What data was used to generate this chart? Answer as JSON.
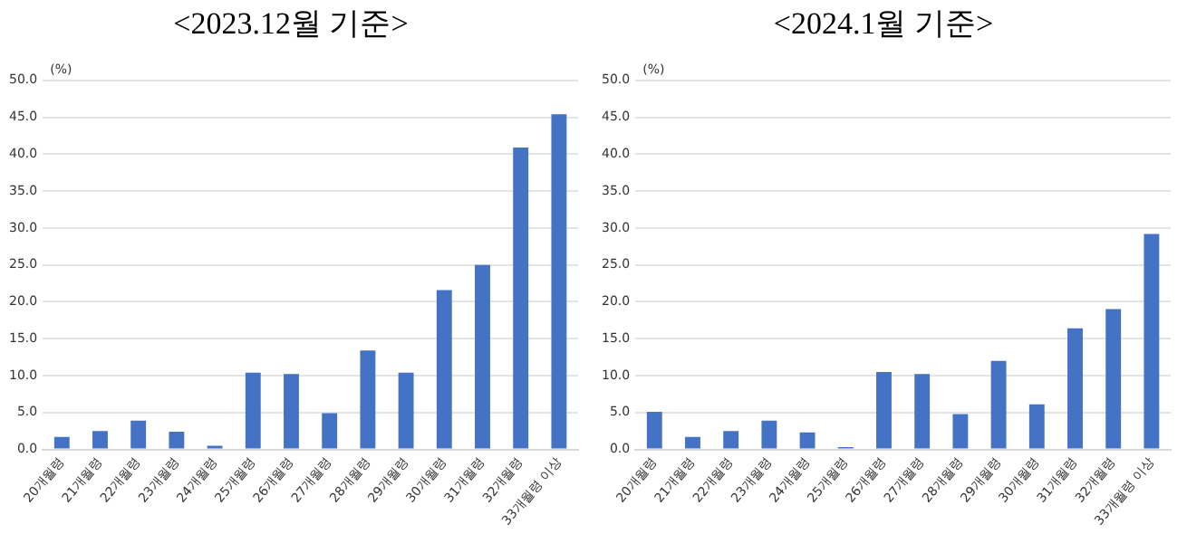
{
  "chart_data": [
    {
      "type": "bar",
      "title": "<2023.12월 기준>",
      "ylabel": "(%)",
      "categories": [
        "20개월령",
        "21개월령",
        "22개월령",
        "23개월령",
        "24개월령",
        "25개월령",
        "26개월령",
        "27개월령",
        "28개월령",
        "29개월령",
        "30개월령",
        "31개월령",
        "32개월령",
        "33개월령 이상"
      ],
      "values": [
        1.7,
        2.5,
        3.9,
        2.4,
        0.5,
        10.4,
        10.2,
        4.9,
        13.4,
        10.4,
        21.6,
        25.0,
        40.9,
        45.4
      ],
      "color": "#4472c4",
      "ylim": [
        0,
        50
      ],
      "yticks": [
        {
          "value": 0,
          "label": "0.0"
        },
        {
          "value": 5,
          "label": "5.0"
        },
        {
          "value": 10,
          "label": "10.0"
        },
        {
          "value": 15,
          "label": "15.0"
        },
        {
          "value": 20,
          "label": "20.0"
        },
        {
          "value": 25,
          "label": "25.0"
        },
        {
          "value": 30,
          "label": "30.0"
        },
        {
          "value": 35,
          "label": "35.0"
        },
        {
          "value": 40,
          "label": "40.0"
        },
        {
          "value": 45,
          "label": "45.0"
        },
        {
          "value": 50,
          "label": "50.0"
        }
      ],
      "grid": "y",
      "legend": false
    },
    {
      "type": "bar",
      "title": "<2024.1월 기준>",
      "ylabel": "(%)",
      "categories": [
        "20개월령",
        "21개월령",
        "22개월령",
        "23개월령",
        "24개월령",
        "25개월령",
        "26개월령",
        "27개월령",
        "28개월령",
        "29개월령",
        "30개월령",
        "31개월령",
        "32개월령",
        "33개월령 이상"
      ],
      "values": [
        5.1,
        1.7,
        2.5,
        3.9,
        2.3,
        0.3,
        10.5,
        10.2,
        4.8,
        12.0,
        6.1,
        16.4,
        19.0,
        29.2
      ],
      "color": "#4472c4",
      "ylim": [
        0,
        50
      ],
      "yticks": [
        {
          "value": 0,
          "label": "0.0"
        },
        {
          "value": 5,
          "label": "5.0"
        },
        {
          "value": 10,
          "label": "10.0"
        },
        {
          "value": 15,
          "label": "15.0"
        },
        {
          "value": 20,
          "label": "20.0"
        },
        {
          "value": 25,
          "label": "25.0"
        },
        {
          "value": 30,
          "label": "30.0"
        },
        {
          "value": 35,
          "label": "35.0"
        },
        {
          "value": 40,
          "label": "40.0"
        },
        {
          "value": 45,
          "label": "45.0"
        },
        {
          "value": 50,
          "label": "50.0"
        }
      ],
      "grid": "y",
      "legend": false
    }
  ]
}
